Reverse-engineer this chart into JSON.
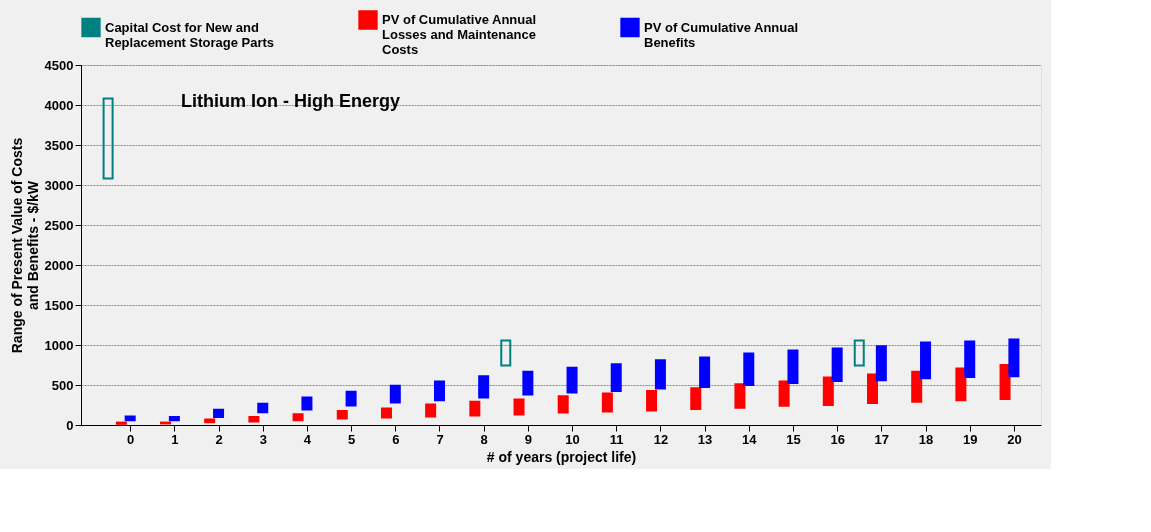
{
  "chart_data": {
    "type": "bar",
    "xlabel": "# of years (project life)",
    "ylabel": "Range of Present Value of Costs and Benefits - $/kW",
    "annotations": [
      "Lithium Ion - High Energy"
    ],
    "series": [
      {
        "name": "Capital Cost for New and Replacement Storage Parts",
        "color": "#008080",
        "x": [
          -0.5,
          8.5,
          16.5
        ],
        "base": [
          3080,
          745,
          745
        ],
        "values": [
          1000,
          310,
          310
        ]
      },
      {
        "name": "PV of Cumulative Annual Losses and Maintenance Costs",
        "color": "#ff0000",
        "x": [
          -0.2,
          0.8,
          1.8,
          2.8,
          3.8,
          4.8,
          5.8,
          6.8,
          7.8,
          8.8,
          9.8,
          10.8,
          11.8,
          12.8,
          13.8,
          14.8,
          15.8,
          16.8,
          17.8,
          18.8,
          19.8
        ],
        "base": [
          15,
          20,
          35,
          45,
          60,
          80,
          95,
          105,
          120,
          130,
          155,
          170,
          180,
          200,
          215,
          240,
          250,
          275,
          290,
          310,
          325
        ],
        "values": [
          15,
          10,
          35,
          55,
          75,
          95,
          110,
          150,
          170,
          190,
          205,
          225,
          245,
          260,
          295,
          305,
          345,
          355,
          375,
          395,
          425
        ]
      },
      {
        "name": "PV of Cumulative Annual Benefits",
        "color": "#0000ff",
        "x": [
          0,
          1,
          2,
          3,
          4,
          5,
          6,
          7,
          8,
          9,
          10,
          11,
          12,
          13,
          14,
          15,
          16,
          17,
          18,
          19,
          20
        ],
        "base": [
          60,
          60,
          100,
          160,
          195,
          245,
          280,
          310,
          345,
          380,
          405,
          425,
          455,
          475,
          500,
          525,
          550,
          560,
          585,
          600,
          610
        ],
        "values": [
          45,
          40,
          90,
          105,
          150,
          170,
          210,
          235,
          265,
          285,
          310,
          335,
          355,
          370,
          395,
          405,
          405,
          425,
          445,
          445,
          460
        ]
      }
    ],
    "xlim": [
      -1,
      20.5
    ],
    "xticks": [
      0,
      1,
      2,
      3,
      4,
      5,
      6,
      7,
      8,
      9,
      10,
      11,
      12,
      13,
      14,
      15,
      16,
      17,
      18,
      19,
      20
    ],
    "ylim": [
      0,
      4500
    ],
    "yticks": [
      0,
      500,
      1000,
      1500,
      2000,
      2500,
      3000,
      3500,
      4000,
      4500
    ],
    "grid": "y",
    "legend": "top"
  }
}
